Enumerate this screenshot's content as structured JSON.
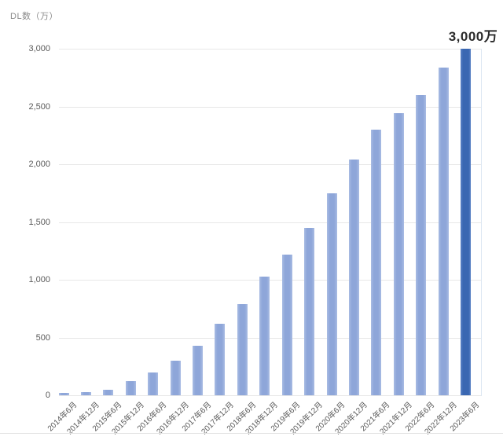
{
  "page": {
    "background_color": "#ffffff"
  },
  "chart_data": {
    "type": "bar",
    "title": "",
    "xlabel": "",
    "ylabel": "DL数（万）",
    "categories": [
      "2014年6月",
      "2014年12月",
      "2015年6月",
      "2015年12月",
      "2016年6月",
      "2016年12月",
      "2017年6月",
      "2017年12月",
      "2018年6月",
      "2018年12月",
      "2019年6月",
      "2019年12月",
      "2020年6月",
      "2020年12月",
      "2021年6月",
      "2021年12月",
      "2022年6月",
      "2022年12月",
      "2023年6月"
    ],
    "values": [
      20,
      25,
      50,
      120,
      200,
      300,
      430,
      620,
      790,
      1030,
      1220,
      1450,
      1750,
      2040,
      2300,
      2440,
      2600,
      2840,
      3000
    ],
    "ylim": [
      0,
      3000
    ],
    "yticks": [
      0,
      500,
      1000,
      1500,
      2000,
      2500,
      3000
    ],
    "grid": true,
    "legend": false,
    "annotation": {
      "text": "3,000万",
      "category": "2023年6月"
    },
    "colors": {
      "bar": "#8ea6d9",
      "bar_edge": "#a9bce3",
      "highlight_bar": "#3a67b2",
      "gridline": "#e7e7e7",
      "tick_label": "#595959",
      "unit_label": "#8a8a8a",
      "annotation_text": "#2b2b2b"
    },
    "highlight_index": 18
  }
}
